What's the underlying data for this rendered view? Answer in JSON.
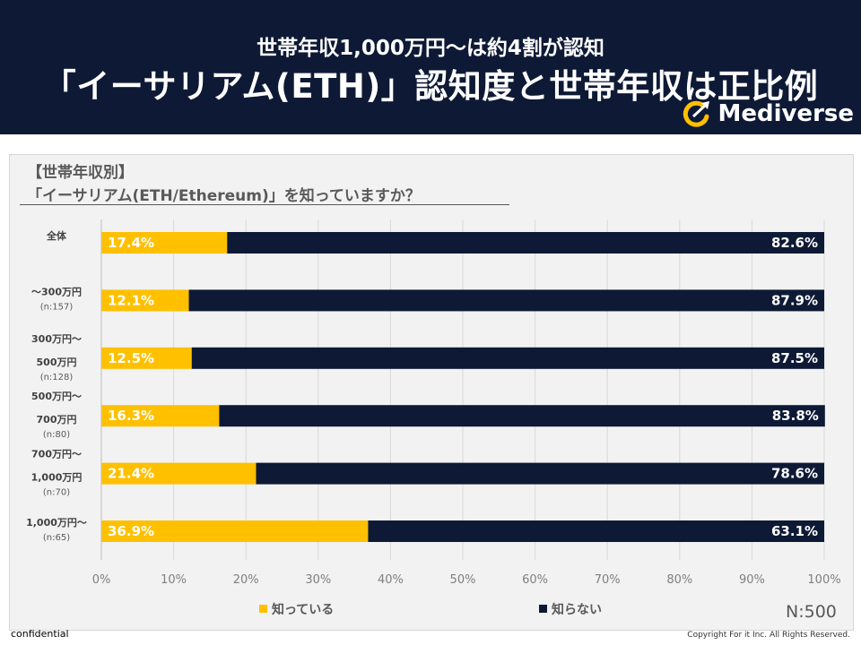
{
  "header": {
    "subtitle": "世帯年収1,000万円〜は約4割が認知",
    "title": "「イーサリアム(ETH)」認知度と世帯年収は正比例",
    "brand": "Mediverse"
  },
  "question": {
    "line1": "【世帯年収別】",
    "line2": "「イーサリアム(ETH/Ethereum)」を知っていますか？"
  },
  "chart_data": {
    "type": "bar",
    "orientation": "horizontal",
    "stacked": "100%",
    "categories": [
      {
        "label": [
          "全体"
        ],
        "n": ""
      },
      {
        "label": [
          "〜300万円"
        ],
        "n": "(n:157)"
      },
      {
        "label": [
          "300万円〜",
          "500万円"
        ],
        "n": "(n:128)"
      },
      {
        "label": [
          "500万円〜",
          "700万円"
        ],
        "n": "(n:80)"
      },
      {
        "label": [
          "700万円〜",
          "1,000万円"
        ],
        "n": "(n:70)"
      },
      {
        "label": [
          "1,000万円〜"
        ],
        "n": "(n:65)"
      }
    ],
    "series": [
      {
        "name": "知っている",
        "color": "#ffc000",
        "values": [
          17.4,
          12.1,
          12.5,
          16.3,
          21.4,
          36.9
        ]
      },
      {
        "name": "知らない",
        "color": "#0e1a35",
        "values": [
          82.6,
          87.9,
          87.5,
          83.8,
          78.6,
          63.1
        ]
      }
    ],
    "xlim": [
      0,
      100
    ],
    "xticks": [
      "0%",
      "10%",
      "20%",
      "30%",
      "40%",
      "50%",
      "60%",
      "70%",
      "80%",
      "90%",
      "100%"
    ],
    "grid": true,
    "legend_position": "bottom"
  },
  "sample_size": "N:500",
  "footer": {
    "left": "confidential",
    "right": "Copyright For it Inc. All Rights Reserved."
  },
  "colors": {
    "header_bg": "#0e1a35",
    "known": "#ffc000",
    "unknown": "#0e1a35"
  }
}
